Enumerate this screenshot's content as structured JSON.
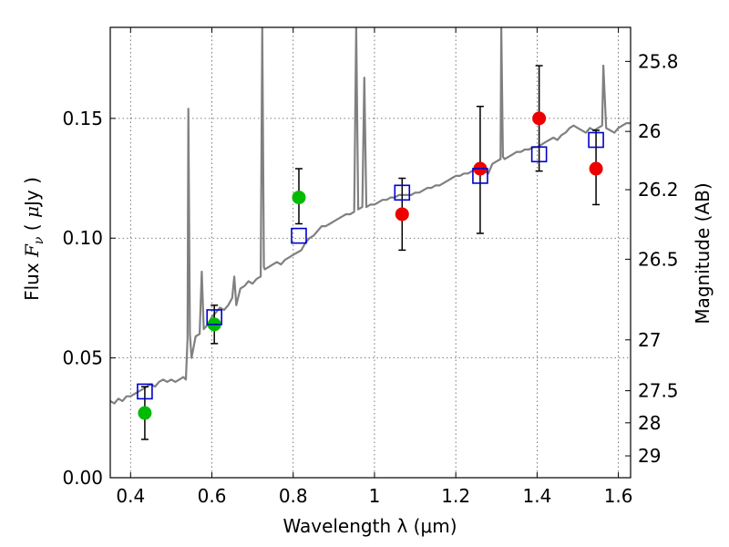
{
  "chart_data": {
    "type": "scatter",
    "xlabel": "Wavelength  λ (μm)",
    "ylabel": "Flux  F_ν  ( μJy )",
    "ylabel_parts": [
      "Flux  ",
      "F",
      "ν",
      "  ( ",
      "μ",
      "Jy )"
    ],
    "y2label": "Magnitude (AB)",
    "xlim": [
      0.35,
      1.63
    ],
    "ylim": [
      0.0,
      0.188
    ],
    "grid": true,
    "x_ticks": [
      {
        "value": 0.4,
        "label": "0.4"
      },
      {
        "value": 0.6,
        "label": "0.6"
      },
      {
        "value": 0.8,
        "label": "0.8"
      },
      {
        "value": 1.0,
        "label": "1"
      },
      {
        "value": 1.2,
        "label": "1.2"
      },
      {
        "value": 1.4,
        "label": "1.4"
      },
      {
        "value": 1.6,
        "label": "1.6"
      }
    ],
    "y_ticks": [
      {
        "value": 0.0,
        "label": "0.00"
      },
      {
        "value": 0.05,
        "label": "0.05"
      },
      {
        "value": 0.1,
        "label": "0.10"
      },
      {
        "value": 0.15,
        "label": "0.15"
      }
    ],
    "y2_ticks": [
      {
        "value": 25.8,
        "label": "25.8"
      },
      {
        "value": 26.0,
        "label": "26"
      },
      {
        "value": 26.2,
        "label": "26.2"
      },
      {
        "value": 26.5,
        "label": "26.5"
      },
      {
        "value": 27.0,
        "label": "27"
      },
      {
        "value": 27.5,
        "label": "27.5"
      },
      {
        "value": 28.0,
        "label": "28"
      },
      {
        "value": 29.0,
        "label": "29"
      }
    ],
    "model_spectrum": {
      "color": "#808080",
      "points": [
        [
          0.35,
          0.032
        ],
        [
          0.36,
          0.031
        ],
        [
          0.37,
          0.033
        ],
        [
          0.38,
          0.032
        ],
        [
          0.39,
          0.034
        ],
        [
          0.4,
          0.034
        ],
        [
          0.41,
          0.035
        ],
        [
          0.42,
          0.036
        ],
        [
          0.43,
          0.037
        ],
        [
          0.44,
          0.038
        ],
        [
          0.45,
          0.039
        ],
        [
          0.46,
          0.038
        ],
        [
          0.47,
          0.04
        ],
        [
          0.48,
          0.041
        ],
        [
          0.49,
          0.04
        ],
        [
          0.5,
          0.041
        ],
        [
          0.51,
          0.04
        ],
        [
          0.52,
          0.041
        ],
        [
          0.53,
          0.042
        ],
        [
          0.536,
          0.041
        ],
        [
          0.54,
          0.058
        ],
        [
          0.542,
          0.154
        ],
        [
          0.546,
          0.06
        ],
        [
          0.55,
          0.05
        ],
        [
          0.56,
          0.059
        ],
        [
          0.57,
          0.06
        ],
        [
          0.575,
          0.086
        ],
        [
          0.58,
          0.062
        ],
        [
          0.59,
          0.064
        ],
        [
          0.6,
          0.067
        ],
        [
          0.61,
          0.069
        ],
        [
          0.62,
          0.071
        ],
        [
          0.63,
          0.07
        ],
        [
          0.64,
          0.072
        ],
        [
          0.65,
          0.075
        ],
        [
          0.655,
          0.084
        ],
        [
          0.66,
          0.072
        ],
        [
          0.67,
          0.079
        ],
        [
          0.68,
          0.08
        ],
        [
          0.69,
          0.082
        ],
        [
          0.7,
          0.081
        ],
        [
          0.71,
          0.083
        ],
        [
          0.72,
          0.084
        ],
        [
          0.724,
          0.188
        ],
        [
          0.728,
          0.088
        ],
        [
          0.73,
          0.087
        ],
        [
          0.74,
          0.088
        ],
        [
          0.75,
          0.089
        ],
        [
          0.76,
          0.09
        ],
        [
          0.77,
          0.089
        ],
        [
          0.78,
          0.091
        ],
        [
          0.79,
          0.092
        ],
        [
          0.8,
          0.093
        ],
        [
          0.81,
          0.094
        ],
        [
          0.82,
          0.095
        ],
        [
          0.83,
          0.098
        ],
        [
          0.84,
          0.1
        ],
        [
          0.85,
          0.101
        ],
        [
          0.86,
          0.103
        ],
        [
          0.87,
          0.105
        ],
        [
          0.88,
          0.105
        ],
        [
          0.89,
          0.106
        ],
        [
          0.9,
          0.107
        ],
        [
          0.91,
          0.108
        ],
        [
          0.92,
          0.109
        ],
        [
          0.93,
          0.11
        ],
        [
          0.94,
          0.11
        ],
        [
          0.95,
          0.111
        ],
        [
          0.955,
          0.188
        ],
        [
          0.96,
          0.112
        ],
        [
          0.97,
          0.113
        ],
        [
          0.975,
          0.167
        ],
        [
          0.98,
          0.113
        ],
        [
          0.99,
          0.114
        ],
        [
          1.0,
          0.114
        ],
        [
          1.01,
          0.115
        ],
        [
          1.02,
          0.116
        ],
        [
          1.03,
          0.116
        ],
        [
          1.04,
          0.117
        ],
        [
          1.05,
          0.117
        ],
        [
          1.06,
          0.118
        ],
        [
          1.07,
          0.118
        ],
        [
          1.08,
          0.118
        ],
        [
          1.09,
          0.118
        ],
        [
          1.1,
          0.119
        ],
        [
          1.11,
          0.119
        ],
        [
          1.12,
          0.12
        ],
        [
          1.13,
          0.121
        ],
        [
          1.14,
          0.121
        ],
        [
          1.15,
          0.122
        ],
        [
          1.16,
          0.122
        ],
        [
          1.17,
          0.123
        ],
        [
          1.18,
          0.124
        ],
        [
          1.19,
          0.125
        ],
        [
          1.2,
          0.126
        ],
        [
          1.21,
          0.126
        ],
        [
          1.22,
          0.127
        ],
        [
          1.23,
          0.127
        ],
        [
          1.24,
          0.128
        ],
        [
          1.25,
          0.129
        ],
        [
          1.26,
          0.129
        ],
        [
          1.27,
          0.128
        ],
        [
          1.28,
          0.127
        ],
        [
          1.29,
          0.131
        ],
        [
          1.3,
          0.132
        ],
        [
          1.31,
          0.133
        ],
        [
          1.312,
          0.188
        ],
        [
          1.316,
          0.134
        ],
        [
          1.32,
          0.133
        ],
        [
          1.33,
          0.134
        ],
        [
          1.34,
          0.135
        ],
        [
          1.35,
          0.136
        ],
        [
          1.36,
          0.136
        ],
        [
          1.37,
          0.137
        ],
        [
          1.38,
          0.137
        ],
        [
          1.39,
          0.138
        ],
        [
          1.4,
          0.138
        ],
        [
          1.41,
          0.139
        ],
        [
          1.42,
          0.14
        ],
        [
          1.43,
          0.141
        ],
        [
          1.44,
          0.142
        ],
        [
          1.45,
          0.141
        ],
        [
          1.46,
          0.143
        ],
        [
          1.47,
          0.144
        ],
        [
          1.48,
          0.146
        ],
        [
          1.49,
          0.147
        ],
        [
          1.5,
          0.146
        ],
        [
          1.51,
          0.145
        ],
        [
          1.52,
          0.144
        ],
        [
          1.53,
          0.146
        ],
        [
          1.54,
          0.145
        ],
        [
          1.55,
          0.146
        ],
        [
          1.56,
          0.147
        ],
        [
          1.563,
          0.172
        ],
        [
          1.57,
          0.146
        ],
        [
          1.58,
          0.145
        ],
        [
          1.59,
          0.144
        ],
        [
          1.6,
          0.146
        ],
        [
          1.61,
          0.147
        ],
        [
          1.62,
          0.148
        ],
        [
          1.63,
          0.148
        ]
      ]
    },
    "model_photometry": {
      "marker": "square",
      "color": "#0000cc",
      "points": [
        {
          "x": 0.435,
          "y": 0.036
        },
        {
          "x": 0.606,
          "y": 0.067
        },
        {
          "x": 0.814,
          "y": 0.101
        },
        {
          "x": 1.068,
          "y": 0.119
        },
        {
          "x": 1.26,
          "y": 0.126
        },
        {
          "x": 1.405,
          "y": 0.135
        },
        {
          "x": 1.545,
          "y": 0.141
        }
      ]
    },
    "observed": [
      {
        "x": 0.435,
        "y": 0.027,
        "err_low": 0.016,
        "err_high": 0.038,
        "color": "#00bb00"
      },
      {
        "x": 0.606,
        "y": 0.064,
        "err_low": 0.056,
        "err_high": 0.072,
        "color": "#00bb00"
      },
      {
        "x": 0.814,
        "y": 0.117,
        "err_low": 0.106,
        "err_high": 0.129,
        "color": "#00bb00"
      },
      {
        "x": 1.068,
        "y": 0.11,
        "err_low": 0.095,
        "err_high": 0.125,
        "color": "#ee0000"
      },
      {
        "x": 1.26,
        "y": 0.129,
        "err_low": 0.102,
        "err_high": 0.155,
        "color": "#ee0000"
      },
      {
        "x": 1.405,
        "y": 0.15,
        "err_low": 0.128,
        "err_high": 0.172,
        "color": "#ee0000"
      },
      {
        "x": 1.545,
        "y": 0.129,
        "err_low": 0.114,
        "err_high": 0.145,
        "color": "#ee0000"
      }
    ]
  }
}
